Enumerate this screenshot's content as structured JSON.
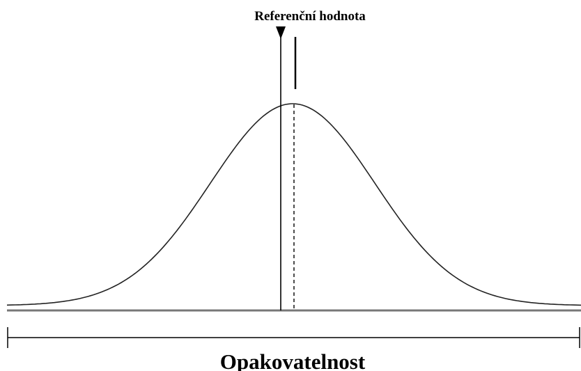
{
  "diagram": {
    "reference_label": "Referenční hodnota",
    "range_label": "Opakovatelnost"
  }
}
